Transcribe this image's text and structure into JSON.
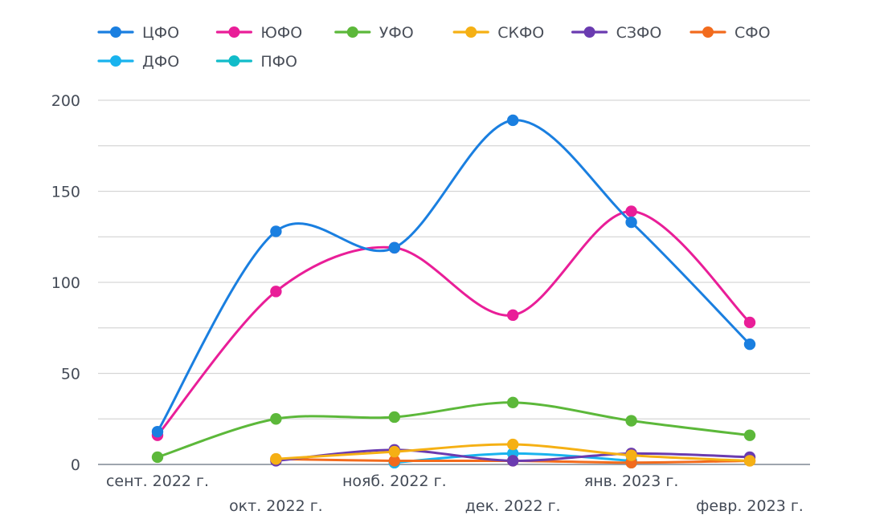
{
  "chart_data": {
    "type": "line",
    "title": "",
    "xlabel": "",
    "ylabel": "",
    "categories": [
      "сент. 2022 г.",
      "окт. 2022 г.",
      "нояб. 2022 г.",
      "дек. 2022 г.",
      "янв. 2023 г.",
      "февр. 2023 г."
    ],
    "ylim": [
      0,
      200
    ],
    "yticks": [
      0,
      50,
      100,
      150,
      200
    ],
    "grid": true,
    "legend": "top",
    "smooth": true,
    "series": [
      {
        "name": "ЦФО",
        "color": "#1a7fe0",
        "values": [
          18,
          128,
          119,
          189,
          133,
          66
        ]
      },
      {
        "name": "ЮФО",
        "color": "#e91e98",
        "values": [
          16,
          95,
          119,
          82,
          139,
          78
        ]
      },
      {
        "name": "УФО",
        "color": "#5cb83a",
        "values": [
          4,
          25,
          26,
          34,
          24,
          16
        ]
      },
      {
        "name": "СКФО",
        "color": "#f5b014",
        "values": [
          null,
          3,
          7,
          11,
          5,
          2
        ]
      },
      {
        "name": "СЗФО",
        "color": "#6a3bb0",
        "values": [
          null,
          2,
          8,
          2,
          6,
          4
        ]
      },
      {
        "name": "СФО",
        "color": "#f26b1d",
        "values": [
          null,
          3,
          2,
          2,
          1,
          2
        ]
      },
      {
        "name": "ДФО",
        "color": "#19b3ee",
        "values": [
          null,
          null,
          1,
          6,
          2,
          null
        ]
      },
      {
        "name": "ПФО",
        "color": "#11bcc9",
        "values": [
          null,
          null,
          1,
          null,
          1,
          null
        ]
      }
    ]
  }
}
